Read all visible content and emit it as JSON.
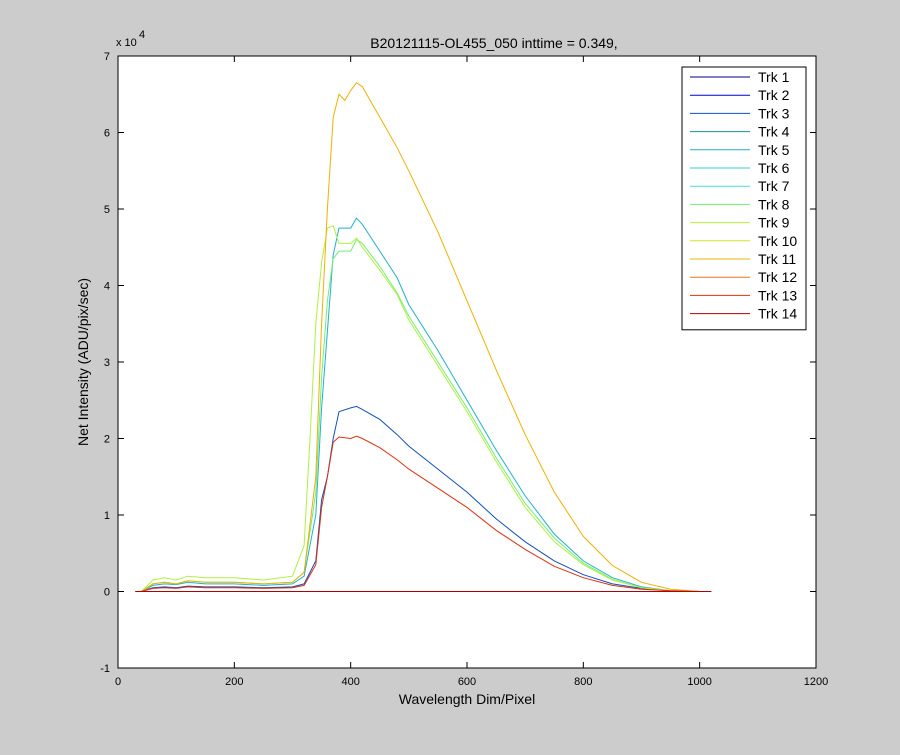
{
  "chart_data": {
    "type": "line",
    "title": "B20121115-OL455_050 inttime = 0.349,",
    "xlabel": "Wavelength Dim/Pixel",
    "ylabel": "Net Intensity (ADU/pix/sec)",
    "y_multiplier_label": "x 10",
    "y_multiplier_exp": "4",
    "xlim": [
      0,
      1200
    ],
    "ylim": [
      -1,
      7
    ],
    "y_scale_note": "values in units of 10^4",
    "xticks": [
      0,
      200,
      400,
      600,
      800,
      1000,
      1200
    ],
    "xtick_labels": [
      "0",
      "200",
      "400",
      "600",
      "800",
      "1000",
      "1200"
    ],
    "yticks": [
      -1,
      0,
      1,
      2,
      3,
      4,
      5,
      6,
      7
    ],
    "ytick_labels": [
      "-1",
      "0",
      "1",
      "2",
      "3",
      "4",
      "5",
      "6",
      "7"
    ],
    "grid": false,
    "legend_position": "top-right",
    "series": [
      {
        "name": "Trk 1",
        "color": "#00008f",
        "x": [
          30,
          1020
        ],
        "y": [
          0,
          0
        ]
      },
      {
        "name": "Trk 2",
        "color": "#0000df",
        "x": [
          30,
          1020
        ],
        "y": [
          0,
          0
        ]
      },
      {
        "name": "Trk 3",
        "color": "#0f4fbf",
        "x": [
          30,
          40,
          60,
          80,
          100,
          120,
          150,
          200,
          250,
          300,
          320,
          340,
          350,
          360,
          370,
          380,
          400,
          410,
          420,
          450,
          480,
          500,
          550,
          600,
          650,
          700,
          750,
          800,
          850,
          900,
          950,
          1000,
          1020
        ],
        "y": [
          0,
          0,
          0.05,
          0.06,
          0.05,
          0.07,
          0.06,
          0.06,
          0.05,
          0.06,
          0.1,
          0.4,
          1.2,
          1.5,
          2.0,
          2.35,
          2.4,
          2.42,
          2.38,
          2.25,
          2.05,
          1.9,
          1.6,
          1.3,
          0.95,
          0.65,
          0.4,
          0.22,
          0.1,
          0.04,
          0.01,
          0,
          0
        ]
      },
      {
        "name": "Trk 4",
        "color": "#1a8fa0",
        "x": [
          30,
          1020
        ],
        "y": [
          0,
          0
        ]
      },
      {
        "name": "Trk 5",
        "color": "#20b0d0",
        "x": [
          30,
          40,
          60,
          80,
          100,
          120,
          150,
          200,
          250,
          300,
          320,
          340,
          350,
          360,
          370,
          380,
          400,
          410,
          420,
          450,
          480,
          500,
          550,
          600,
          650,
          700,
          750,
          800,
          850,
          900,
          950,
          1000,
          1020
        ],
        "y": [
          0,
          0,
          0.08,
          0.1,
          0.09,
          0.12,
          0.1,
          0.1,
          0.08,
          0.1,
          0.2,
          1.0,
          2.4,
          3.4,
          4.4,
          4.75,
          4.75,
          4.88,
          4.8,
          4.45,
          4.1,
          3.75,
          3.15,
          2.5,
          1.85,
          1.25,
          0.75,
          0.4,
          0.18,
          0.06,
          0.01,
          0,
          0
        ]
      },
      {
        "name": "Trk 6",
        "color": "#30d0e0",
        "x": [
          30,
          1020
        ],
        "y": [
          0,
          0
        ]
      },
      {
        "name": "Trk 7",
        "color": "#40e0d0",
        "x": [
          30,
          1020
        ],
        "y": [
          0,
          0
        ]
      },
      {
        "name": "Trk 8",
        "color": "#70f070",
        "x": [
          30,
          40,
          60,
          80,
          100,
          120,
          150,
          200,
          250,
          300,
          320,
          340,
          350,
          360,
          370,
          380,
          400,
          410,
          420,
          450,
          480,
          500,
          550,
          600,
          650,
          700,
          750,
          800,
          850,
          900,
          950,
          1000,
          1020
        ],
        "y": [
          0,
          0,
          0.1,
          0.12,
          0.1,
          0.14,
          0.12,
          0.12,
          0.1,
          0.12,
          0.25,
          1.3,
          2.8,
          3.8,
          4.35,
          4.45,
          4.45,
          4.6,
          4.55,
          4.25,
          3.9,
          3.6,
          3.0,
          2.4,
          1.75,
          1.15,
          0.7,
          0.37,
          0.16,
          0.05,
          0.01,
          0,
          0
        ]
      },
      {
        "name": "Trk 9",
        "color": "#b0f040",
        "x": [
          30,
          40,
          60,
          80,
          100,
          120,
          150,
          200,
          250,
          300,
          320,
          330,
          340,
          350,
          360,
          370,
          380,
          400,
          410,
          420,
          450,
          480,
          500,
          550,
          600,
          650,
          700,
          750,
          800,
          850,
          900,
          950,
          1000,
          1020
        ],
        "y": [
          0,
          0,
          0.15,
          0.18,
          0.15,
          0.2,
          0.18,
          0.18,
          0.15,
          0.2,
          0.6,
          2.0,
          3.5,
          4.3,
          4.75,
          4.78,
          4.55,
          4.55,
          4.62,
          4.5,
          4.2,
          3.88,
          3.55,
          2.95,
          2.35,
          1.7,
          1.1,
          0.65,
          0.35,
          0.15,
          0.05,
          0.01,
          0,
          0
        ]
      },
      {
        "name": "Trk 10",
        "color": "#d8e020",
        "x": [
          30,
          1020
        ],
        "y": [
          0,
          0
        ]
      },
      {
        "name": "Trk 11",
        "color": "#f0b000",
        "x": [
          30,
          40,
          60,
          80,
          100,
          120,
          150,
          200,
          250,
          300,
          320,
          340,
          350,
          360,
          370,
          380,
          390,
          400,
          410,
          420,
          450,
          480,
          500,
          550,
          600,
          650,
          700,
          750,
          800,
          850,
          900,
          950,
          1000,
          1020
        ],
        "y": [
          0,
          0,
          0.1,
          0.12,
          0.1,
          0.14,
          0.12,
          0.12,
          0.1,
          0.12,
          0.25,
          1.5,
          3.5,
          5.0,
          6.2,
          6.5,
          6.42,
          6.55,
          6.65,
          6.6,
          6.2,
          5.8,
          5.5,
          4.7,
          3.8,
          2.9,
          2.05,
          1.3,
          0.72,
          0.34,
          0.12,
          0.03,
          0,
          0
        ]
      },
      {
        "name": "Trk 12",
        "color": "#f07020",
        "x": [
          30,
          1020
        ],
        "y": [
          0,
          0
        ]
      },
      {
        "name": "Trk 13",
        "color": "#e03010",
        "x": [
          30,
          40,
          60,
          80,
          100,
          120,
          150,
          200,
          250,
          300,
          320,
          340,
          350,
          360,
          370,
          380,
          400,
          410,
          420,
          450,
          480,
          500,
          550,
          600,
          650,
          700,
          750,
          800,
          850,
          900,
          950,
          1000,
          1020
        ],
        "y": [
          0,
          0,
          0.04,
          0.05,
          0.04,
          0.06,
          0.05,
          0.05,
          0.04,
          0.05,
          0.08,
          0.35,
          1.1,
          1.5,
          1.95,
          2.02,
          2.0,
          2.03,
          2.0,
          1.88,
          1.72,
          1.6,
          1.35,
          1.1,
          0.8,
          0.55,
          0.33,
          0.18,
          0.08,
          0.03,
          0.01,
          0,
          0
        ]
      },
      {
        "name": "Trk 14",
        "color": "#b00000",
        "x": [
          30,
          1020
        ],
        "y": [
          0,
          0
        ]
      }
    ]
  }
}
